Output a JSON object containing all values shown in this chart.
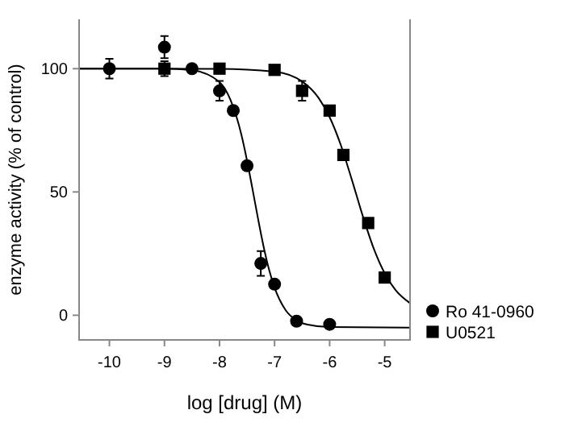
{
  "chart_data": {
    "type": "scatter",
    "xlabel": "log [drug] (M)",
    "ylabel": "enzyme activity (% of control)",
    "xlim": [
      -10.55,
      -4.54
    ],
    "ylim": [
      -10,
      120
    ],
    "xticks": [
      -10,
      -9,
      -8,
      -7,
      -6,
      -5
    ],
    "yticks": [
      0,
      50,
      100
    ],
    "grid": false,
    "legend": "right",
    "series": [
      {
        "name": "Ro 41-0960",
        "color": "#000000",
        "marker": "circle",
        "x": [
          -10,
          -9,
          -8.5,
          -8,
          -7.75,
          -7.5,
          -7.25,
          -7,
          -6.6,
          -6
        ],
        "values": [
          100,
          108.7,
          100,
          91,
          83,
          60.6,
          21,
          12.6,
          -2.4,
          -3.7
        ],
        "errors": [
          4,
          4.5,
          null,
          4,
          null,
          null,
          5,
          null,
          null,
          null
        ]
      },
      {
        "name": "U0521",
        "color": "#000000",
        "marker": "square",
        "x": [
          -9,
          -8,
          -7,
          -6.5,
          -6,
          -5.75,
          -5.3,
          -5
        ],
        "values": [
          100,
          100,
          99.5,
          91,
          83,
          65,
          37.4,
          15.3
        ],
        "errors": [
          3,
          null,
          null,
          4,
          null,
          null,
          null,
          null
        ]
      },
      {
        "type": "line",
        "color": "#000000",
        "marker": "none",
        "x": [
          -10.55,
          -9,
          -8.5,
          -8,
          -7.8,
          -7.6,
          -7.5,
          -7.4,
          -7.3,
          -7.2,
          -7.1,
          -7,
          -6.8,
          -6.6,
          -6.4,
          -6,
          -4.54
        ],
        "values": [
          100,
          100,
          99.4,
          94.5,
          87.3,
          73,
          62.7,
          51.1,
          39.1,
          27.9,
          18.5,
          11.2,
          2.1,
          -2.1,
          -3.8,
          -4.8,
          -5
        ]
      },
      {
        "type": "line",
        "color": "#000000",
        "marker": "none",
        "x": [
          -10.55,
          -8,
          -7,
          -6.5,
          -6.2,
          -6,
          -5.8,
          -5.6,
          -5.4,
          -5.2,
          -5,
          -4.8,
          -4.54
        ],
        "values": [
          100,
          99.9,
          98.8,
          94.8,
          88.1,
          80.3,
          69.2,
          55.2,
          40.4,
          27.1,
          17,
          10.1,
          4.9
        ]
      }
    ]
  }
}
